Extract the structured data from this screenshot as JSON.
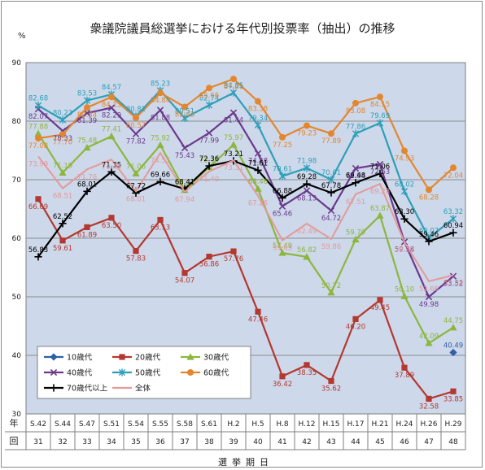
{
  "chart_data": {
    "type": "line",
    "title": "衆議院議員総選挙における年代別投票率（抽出）の推移",
    "y_unit": "%",
    "xlabel": "選挙期日",
    "y_axis_side_label": "年回",
    "ylim": [
      30,
      90
    ],
    "yticks": [
      30,
      40,
      50,
      60,
      70,
      80,
      90
    ],
    "grid": true,
    "legend_placement": "bottom-left",
    "categories": [
      "S.42",
      "S.44",
      "S.47",
      "S.51",
      "S.54",
      "S.55",
      "S.58",
      "S.61",
      "H.2",
      "H.5",
      "H.8",
      "H.12",
      "H.15",
      "H.17",
      "H.21",
      "H.24",
      "H.26",
      "H.29"
    ],
    "rounds": [
      "31",
      "32",
      "33",
      "34",
      "35",
      "36",
      "37",
      "38",
      "39",
      "40",
      "41",
      "42",
      "43",
      "44",
      "45",
      "46",
      "47",
      "48"
    ],
    "series": [
      {
        "name": "10歳代",
        "color": "#2e5fa8",
        "marker": "diamond",
        "values": [
          null,
          null,
          null,
          null,
          null,
          null,
          null,
          null,
          null,
          null,
          null,
          null,
          null,
          null,
          null,
          null,
          null,
          40.49
        ]
      },
      {
        "name": "20歳代",
        "color": "#b3382f",
        "marker": "square",
        "values": [
          66.69,
          59.61,
          61.89,
          63.5,
          57.83,
          63.13,
          54.07,
          56.86,
          57.76,
          47.46,
          36.42,
          38.35,
          35.62,
          46.2,
          49.45,
          37.89,
          32.58,
          33.85
        ]
      },
      {
        "name": "30歳代",
        "color": "#8db63c",
        "marker": "triangle",
        "values": [
          77.88,
          71.19,
          75.48,
          77.41,
          71.06,
          75.92,
          68.25,
          72.15,
          75.97,
          68.46,
          57.49,
          56.82,
          50.72,
          59.79,
          63.87,
          50.1,
          42.09,
          44.75
        ]
      },
      {
        "name": "40歳代",
        "color": "#6b3a8c",
        "marker": "x",
        "values": [
          82.07,
          78.33,
          81.39,
          82.29,
          77.82,
          81.88,
          75.43,
          77.99,
          81.44,
          74.48,
          65.46,
          68.13,
          64.72,
          71.94,
          72.63,
          59.38,
          49.98,
          53.52
        ]
      },
      {
        "name": "50歳代",
        "color": "#2e9fb8",
        "marker": "star",
        "values": [
          82.68,
          80.23,
          83.53,
          84.57,
          80.82,
          85.23,
          80.51,
          82.74,
          84.85,
          79.34,
          70.61,
          71.98,
          70.01,
          77.86,
          79.69,
          68.02,
          60.07,
          63.32
        ]
      },
      {
        "name": "60歳代",
        "color": "#e3872f",
        "marker": "circle",
        "values": [
          77.08,
          77.7,
          82.34,
          84.13,
          80.57,
          84.84,
          82.43,
          85.66,
          87.21,
          83.38,
          77.25,
          79.23,
          77.89,
          83.08,
          84.15,
          74.93,
          68.28,
          72.04
        ]
      },
      {
        "name": "70歳代以上",
        "color": "#000000",
        "marker": "plus",
        "values": [
          56.83,
          62.52,
          68.01,
          71.35,
          67.72,
          69.66,
          68.41,
          72.36,
          73.21,
          71.61,
          66.88,
          69.28,
          67.78,
          69.48,
          71.06,
          63.3,
          59.46,
          60.94
        ]
      },
      {
        "name": "全体",
        "color": "#e39a9a",
        "marker": "none",
        "values": [
          73.99,
          68.51,
          71.76,
          73.45,
          68.01,
          74.57,
          67.94,
          71.4,
          73.31,
          67.26,
          59.65,
          62.49,
          59.86,
          67.51,
          69.28,
          59.32,
          52.66,
          53.68
        ]
      }
    ]
  }
}
